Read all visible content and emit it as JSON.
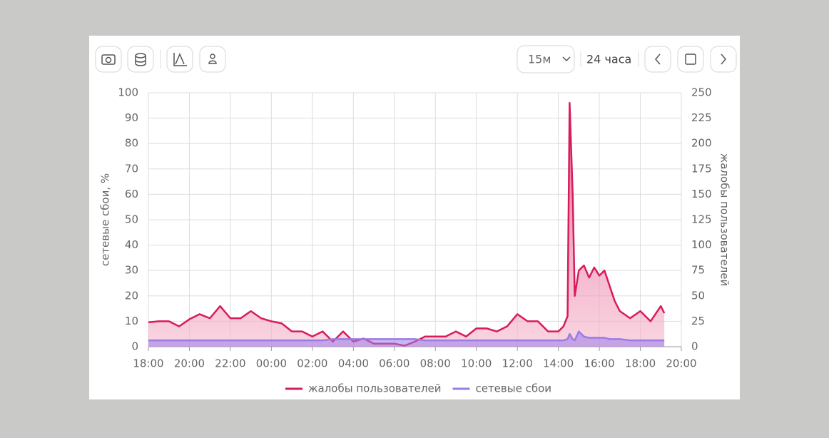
{
  "toolbar": {
    "interval": "15м",
    "range": "24 часа"
  },
  "chart_data": {
    "type": "line",
    "ylabel": "сетевые сбои, %",
    "y2label": "жалобы пользователей",
    "x": [
      0,
      0.5,
      1,
      1.5,
      2,
      2.5,
      3,
      3.5,
      4,
      4.5,
      5,
      5.5,
      6,
      6.5,
      7,
      7.5,
      8,
      8.5,
      9,
      9.5,
      10,
      10.5,
      11,
      11.5,
      12,
      12.5,
      13,
      13.5,
      14,
      14.5,
      15,
      15.5,
      16,
      16.5,
      17,
      17.5,
      18,
      18.5,
      19,
      19.5,
      20,
      20.25,
      20.45,
      20.55,
      20.7,
      20.8,
      21,
      21.25,
      21.5,
      21.75,
      22,
      22.25,
      22.5,
      22.75,
      23,
      23.5,
      24,
      24.5,
      25,
      25.17
    ],
    "xlim": [
      0,
      26
    ],
    "xticks": [
      {
        "value": 0,
        "label": "18:00"
      },
      {
        "value": 2,
        "label": "20:00"
      },
      {
        "value": 4,
        "label": "22:00"
      },
      {
        "value": 6,
        "label": "00:00"
      },
      {
        "value": 8,
        "label": "02:00"
      },
      {
        "value": 10,
        "label": "04:00"
      },
      {
        "value": 12,
        "label": "06:00"
      },
      {
        "value": 14,
        "label": "08:00"
      },
      {
        "value": 16,
        "label": "10:00"
      },
      {
        "value": 18,
        "label": "12:00"
      },
      {
        "value": 20,
        "label": "14:00"
      },
      {
        "value": 22,
        "label": "16:00"
      },
      {
        "value": 24,
        "label": "18:00"
      },
      {
        "value": 26,
        "label": "20:00"
      }
    ],
    "ylim": [
      0,
      100
    ],
    "yticks": [
      0,
      10,
      20,
      30,
      40,
      50,
      60,
      70,
      80,
      90,
      100
    ],
    "y2lim": [
      0,
      250
    ],
    "y2ticks": [
      0,
      25,
      50,
      75,
      100,
      125,
      150,
      175,
      200,
      225,
      250
    ],
    "grid": true,
    "legend": "bottom",
    "series": [
      {
        "name": "жалобы пользователей",
        "color": "#d81b5c",
        "axis": "y2",
        "values": [
          24,
          25,
          25,
          20,
          27,
          32,
          28,
          40,
          28,
          28,
          35,
          28,
          25,
          23,
          15,
          15,
          10,
          15,
          5,
          15,
          5,
          8,
          3,
          3,
          3,
          1,
          5,
          10,
          10,
          10,
          15,
          10,
          18,
          18,
          15,
          20,
          32,
          25,
          25,
          15,
          15,
          20,
          30,
          240,
          150,
          50,
          75,
          80,
          68,
          78,
          70,
          75,
          60,
          45,
          35,
          28,
          35,
          25,
          40,
          33
        ]
      },
      {
        "name": "сетевые сбои",
        "color": "#9b7be8",
        "values": [
          2.5,
          2.5,
          2.5,
          2.5,
          2.5,
          2.5,
          2.5,
          2.5,
          2.5,
          2.5,
          2.5,
          2.5,
          2.5,
          2.5,
          2.5,
          2.5,
          2.5,
          2.5,
          3,
          3,
          3,
          3,
          3,
          3,
          3,
          3,
          3,
          2.5,
          2.5,
          2.5,
          2.5,
          2.5,
          2.5,
          2.5,
          2.5,
          2.5,
          2.5,
          2.5,
          2.5,
          2.5,
          2.5,
          2.5,
          3,
          5,
          3,
          2.5,
          6,
          4,
          3.5,
          3.5,
          3.5,
          3.5,
          3,
          3,
          3,
          2.5,
          2.5,
          2.5,
          2.5,
          2.5
        ]
      }
    ]
  }
}
